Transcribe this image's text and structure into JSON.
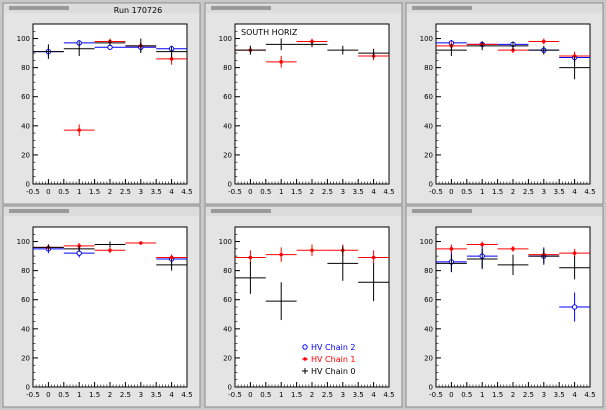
{
  "run_label": "Run 170726",
  "colors": {
    "hv_chain_2": "#0000ff",
    "hv_chain_1": "#ff0000",
    "hv_chain_0": "#000000",
    "frame": "#000000",
    "pad_background": "#ffffff",
    "canvas_background": "#c8c8c8"
  },
  "legend": {
    "entries": [
      {
        "label": "HV Chain 2",
        "marker": "open-circle",
        "color": "#0000ff"
      },
      {
        "label": "HV Chain 1",
        "marker": "star",
        "color": "#ff0000"
      },
      {
        "label": "HV Chain 0",
        "marker": "cross",
        "color": "#000000"
      }
    ]
  },
  "chart_data": [
    {
      "type": "scatter",
      "pad_index": 0,
      "title": "",
      "annotation": "",
      "xlim": [
        -0.5,
        4.5
      ],
      "ylim": [
        0,
        110
      ],
      "xticks": [
        "-0.5",
        "0",
        "0.5",
        "1",
        "1.5",
        "2",
        "2.5",
        "3",
        "3.5",
        "4",
        "4.5"
      ],
      "yticks": [
        "0",
        "20",
        "40",
        "60",
        "80",
        "100"
      ],
      "series": [
        {
          "name": "HV Chain 2",
          "color": "#0000ff",
          "marker": "open-circle",
          "x": [
            0,
            1,
            2,
            3,
            4
          ],
          "y": [
            91,
            97,
            94,
            94,
            93
          ],
          "xerr": [
            0.5,
            0.5,
            0.5,
            0.5,
            0.5
          ],
          "yerr": [
            3,
            2,
            2,
            3,
            2
          ]
        },
        {
          "name": "HV Chain 1",
          "color": "#ff0000",
          "marker": "star",
          "x": [
            1,
            2,
            3,
            4
          ],
          "y": [
            37,
            98,
            95,
            86
          ],
          "xerr": [
            0.5,
            0.5,
            0.5,
            0.5
          ],
          "yerr": [
            4,
            2,
            2,
            4
          ]
        },
        {
          "name": "HV Chain 0",
          "color": "#000000",
          "marker": "cross",
          "x": [
            0,
            1,
            2,
            3,
            4
          ],
          "y": [
            91,
            93,
            97,
            95,
            91
          ],
          "xerr": [
            0.5,
            0.5,
            0.5,
            0.5,
            0.5
          ],
          "yerr": [
            5,
            5,
            2,
            5,
            4
          ]
        }
      ]
    },
    {
      "type": "scatter",
      "pad_index": 1,
      "title": "",
      "annotation": "SOUTH HORIZ",
      "xlim": [
        -0.5,
        4.5
      ],
      "ylim": [
        0,
        110
      ],
      "xticks": [
        "-0.5",
        "0",
        "0.5",
        "1",
        "1.5",
        "2",
        "2.5",
        "3",
        "3.5",
        "4",
        "4.5"
      ],
      "yticks": [
        "0",
        "20",
        "40",
        "60",
        "80",
        "100"
      ],
      "series": [
        {
          "name": "HV Chain 2",
          "color": "#0000ff",
          "marker": "open-circle",
          "x": [],
          "y": [],
          "xerr": [],
          "yerr": []
        },
        {
          "name": "HV Chain 1",
          "color": "#ff0000",
          "marker": "star",
          "x": [
            0,
            1,
            2,
            4
          ],
          "y": [
            92,
            84,
            98,
            88
          ],
          "xerr": [
            0.5,
            0.5,
            0.5,
            0.5
          ],
          "yerr": [
            3,
            4,
            2,
            3
          ]
        },
        {
          "name": "HV Chain 0",
          "color": "#000000",
          "marker": "cross",
          "x": [
            0,
            1,
            2,
            3,
            4
          ],
          "y": [
            92,
            96,
            96,
            92,
            90
          ],
          "xerr": [
            0.5,
            0.5,
            0.5,
            0.5,
            0.5
          ],
          "yerr": [
            3,
            4,
            2,
            3,
            3
          ]
        }
      ]
    },
    {
      "type": "scatter",
      "pad_index": 2,
      "title": "",
      "annotation": "",
      "xlim": [
        -0.5,
        4.5
      ],
      "ylim": [
        0,
        110
      ],
      "xticks": [
        "-0.5",
        "0",
        "0.5",
        "1",
        "1.5",
        "2",
        "2.5",
        "3",
        "3.5",
        "4",
        "4.5"
      ],
      "yticks": [
        "0",
        "20",
        "40",
        "60",
        "80",
        "100"
      ],
      "series": [
        {
          "name": "HV Chain 2",
          "color": "#0000ff",
          "marker": "open-circle",
          "x": [
            0,
            1,
            2,
            3,
            4
          ],
          "y": [
            97,
            96,
            96,
            92,
            87
          ],
          "xerr": [
            0.5,
            0.5,
            0.5,
            0.5,
            0.5
          ],
          "yerr": [
            2,
            2,
            2,
            2,
            3
          ]
        },
        {
          "name": "HV Chain 1",
          "color": "#ff0000",
          "marker": "star",
          "x": [
            0,
            1,
            2,
            3,
            4
          ],
          "y": [
            95,
            96,
            92,
            98,
            88
          ],
          "xerr": [
            0.5,
            0.5,
            0.5,
            0.5,
            0.5
          ],
          "yerr": [
            3,
            2,
            2,
            2,
            3
          ]
        },
        {
          "name": "HV Chain 0",
          "color": "#000000",
          "marker": "cross",
          "x": [
            0,
            1,
            2,
            3,
            4
          ],
          "y": [
            92,
            95,
            95,
            92,
            80
          ],
          "xerr": [
            0.5,
            0.5,
            0.5,
            0.5,
            0.5
          ],
          "yerr": [
            4,
            3,
            3,
            3,
            8
          ]
        }
      ]
    },
    {
      "type": "scatter",
      "pad_index": 3,
      "title": "",
      "annotation": "",
      "xlim": [
        -0.5,
        4.5
      ],
      "ylim": [
        0,
        110
      ],
      "xticks": [
        "-0.5",
        "0",
        "0.5",
        "1",
        "1.5",
        "2",
        "2.5",
        "3",
        "3.5",
        "4",
        "4.5"
      ],
      "yticks": [
        "0",
        "20",
        "40",
        "60",
        "80",
        "100"
      ],
      "series": [
        {
          "name": "HV Chain 2",
          "color": "#0000ff",
          "marker": "open-circle",
          "x": [
            0,
            1,
            4
          ],
          "y": [
            95,
            92,
            88
          ],
          "xerr": [
            0.5,
            0.5,
            0.5
          ],
          "yerr": [
            3,
            3,
            3
          ]
        },
        {
          "name": "HV Chain 1",
          "color": "#ff0000",
          "marker": "star",
          "x": [
            0,
            1,
            2,
            3,
            4
          ],
          "y": [
            96,
            97,
            94,
            99,
            89
          ],
          "xerr": [
            0.5,
            0.5,
            0.5,
            0.5,
            0.5
          ],
          "yerr": [
            2,
            2,
            2,
            1,
            2
          ]
        },
        {
          "name": "HV Chain 0",
          "color": "#000000",
          "marker": "cross",
          "x": [
            0,
            1,
            2,
            4
          ],
          "y": [
            96,
            95,
            98,
            84
          ],
          "xerr": [
            0.5,
            0.5,
            0.5,
            0.5
          ],
          "yerr": [
            2,
            2,
            2,
            4
          ]
        }
      ]
    },
    {
      "type": "scatter",
      "pad_index": 4,
      "title": "",
      "annotation": "",
      "xlim": [
        -0.5,
        4.5
      ],
      "ylim": [
        0,
        110
      ],
      "xticks": [
        "-0.5",
        "0",
        "0.5",
        "1",
        "1.5",
        "2",
        "2.5",
        "3",
        "3.5",
        "4",
        "4.5"
      ],
      "yticks": [
        "0",
        "20",
        "40",
        "60",
        "80",
        "100"
      ],
      "series": [
        {
          "name": "HV Chain 2",
          "color": "#0000ff",
          "marker": "open-circle",
          "x": [],
          "y": [],
          "xerr": [],
          "yerr": []
        },
        {
          "name": "HV Chain 1",
          "color": "#ff0000",
          "marker": "star",
          "x": [
            0,
            1,
            2,
            3,
            4
          ],
          "y": [
            89,
            91,
            94,
            94,
            89
          ],
          "xerr": [
            0.5,
            0.5,
            0.5,
            0.5,
            0.5
          ],
          "yerr": [
            5,
            5,
            4,
            4,
            5
          ]
        },
        {
          "name": "HV Chain 0",
          "color": "#000000",
          "marker": "cross",
          "x": [
            0,
            1,
            3,
            4
          ],
          "y": [
            75,
            59,
            85,
            72
          ],
          "xerr": [
            0.5,
            0.5,
            0.5,
            0.5
          ],
          "yerr": [
            11,
            13,
            12,
            13
          ]
        }
      ]
    },
    {
      "type": "scatter",
      "pad_index": 5,
      "title": "",
      "annotation": "",
      "xlim": [
        -0.5,
        4.5
      ],
      "ylim": [
        0,
        110
      ],
      "xticks": [
        "-0.5",
        "0",
        "0.5",
        "1",
        "1.5",
        "2",
        "2.5",
        "3",
        "3.5",
        "4",
        "4.5"
      ],
      "yticks": [
        "0",
        "20",
        "40",
        "60",
        "80",
        "100"
      ],
      "series": [
        {
          "name": "HV Chain 2",
          "color": "#0000ff",
          "marker": "open-circle",
          "x": [
            0,
            1,
            3,
            4
          ],
          "y": [
            86,
            90,
            90,
            55
          ],
          "xerr": [
            0.5,
            0.5,
            0.5,
            0.5
          ],
          "yerr": [
            7,
            8,
            6,
            10
          ]
        },
        {
          "name": "HV Chain 1",
          "color": "#ff0000",
          "marker": "star",
          "x": [
            0,
            1,
            2,
            3,
            4
          ],
          "y": [
            95,
            98,
            95,
            91,
            92
          ],
          "xerr": [
            0.5,
            0.5,
            0.5,
            0.5,
            0.5
          ],
          "yerr": [
            3,
            2,
            2,
            3,
            3
          ]
        },
        {
          "name": "HV Chain 0",
          "color": "#000000",
          "marker": "cross",
          "x": [
            0,
            1,
            2,
            3,
            4
          ],
          "y": [
            85,
            88,
            84,
            90,
            82
          ],
          "xerr": [
            0.5,
            0.5,
            0.5,
            0.5,
            0.5
          ],
          "yerr": [
            6,
            7,
            7,
            5,
            8
          ]
        }
      ]
    }
  ]
}
